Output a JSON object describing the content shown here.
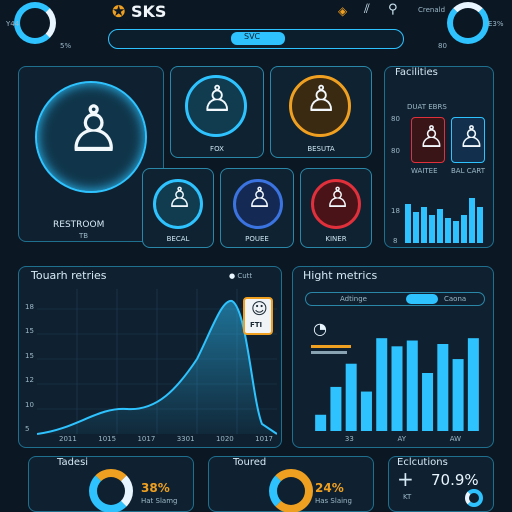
{
  "header": {
    "brand": "SKS",
    "search_label": "SVC",
    "top_left_small": "Y44",
    "top_left_pct": "5%",
    "top_right_pct": "E3%",
    "top_right_num": "80",
    "top_right_text": "Crenald"
  },
  "rooms": {
    "main": {
      "label": "RESTROOM",
      "sub": "TB"
    },
    "fox": {
      "label": "FOX"
    },
    "besuta": {
      "label": "BESUTA"
    },
    "becal": {
      "label": "BECAL"
    },
    "pouee": {
      "label": "POUEE"
    },
    "kiner": {
      "label": "KINER"
    }
  },
  "facilities": {
    "title": "Facilities",
    "sub": "DUAT EBRS",
    "label1": "WAITEE",
    "label2": "BAL CART",
    "ytick1": "80",
    "ytick2": "80",
    "ytick3": "18",
    "ytick4": "8"
  },
  "touch": {
    "title": "Touarh retries",
    "legend": "Cutt",
    "badge": "FTI",
    "yticks": [
      "18",
      "15",
      "15",
      "12",
      "10",
      "5"
    ],
    "xticks": [
      "2011",
      "1015",
      "1017",
      "3301",
      "1020",
      "1017"
    ]
  },
  "hight": {
    "title": "Hight metrics",
    "tab1": "Adtinge",
    "tab2": "Caona",
    "xticks": [
      "33",
      "AY",
      "AW"
    ]
  },
  "tadesi": {
    "title": "Tadesi",
    "value": "38%",
    "sub": "Hat Slamg"
  },
  "toured": {
    "title": "Toured",
    "value": "24%",
    "sub": "Has Slaing"
  },
  "eclut": {
    "title": "Eclcutions",
    "value": "70.9%",
    "plus": "+",
    "sub": "KT"
  },
  "chart_data": {
    "type": "bar",
    "values": [
      14,
      38,
      58,
      34,
      80,
      73,
      78,
      50,
      75,
      62,
      80
    ],
    "ylim": [
      0,
      100
    ]
  },
  "colors": {
    "accent": "#2ec3ff",
    "orange": "#f0a020",
    "red": "#e0303b",
    "panel": "#0f2130"
  }
}
